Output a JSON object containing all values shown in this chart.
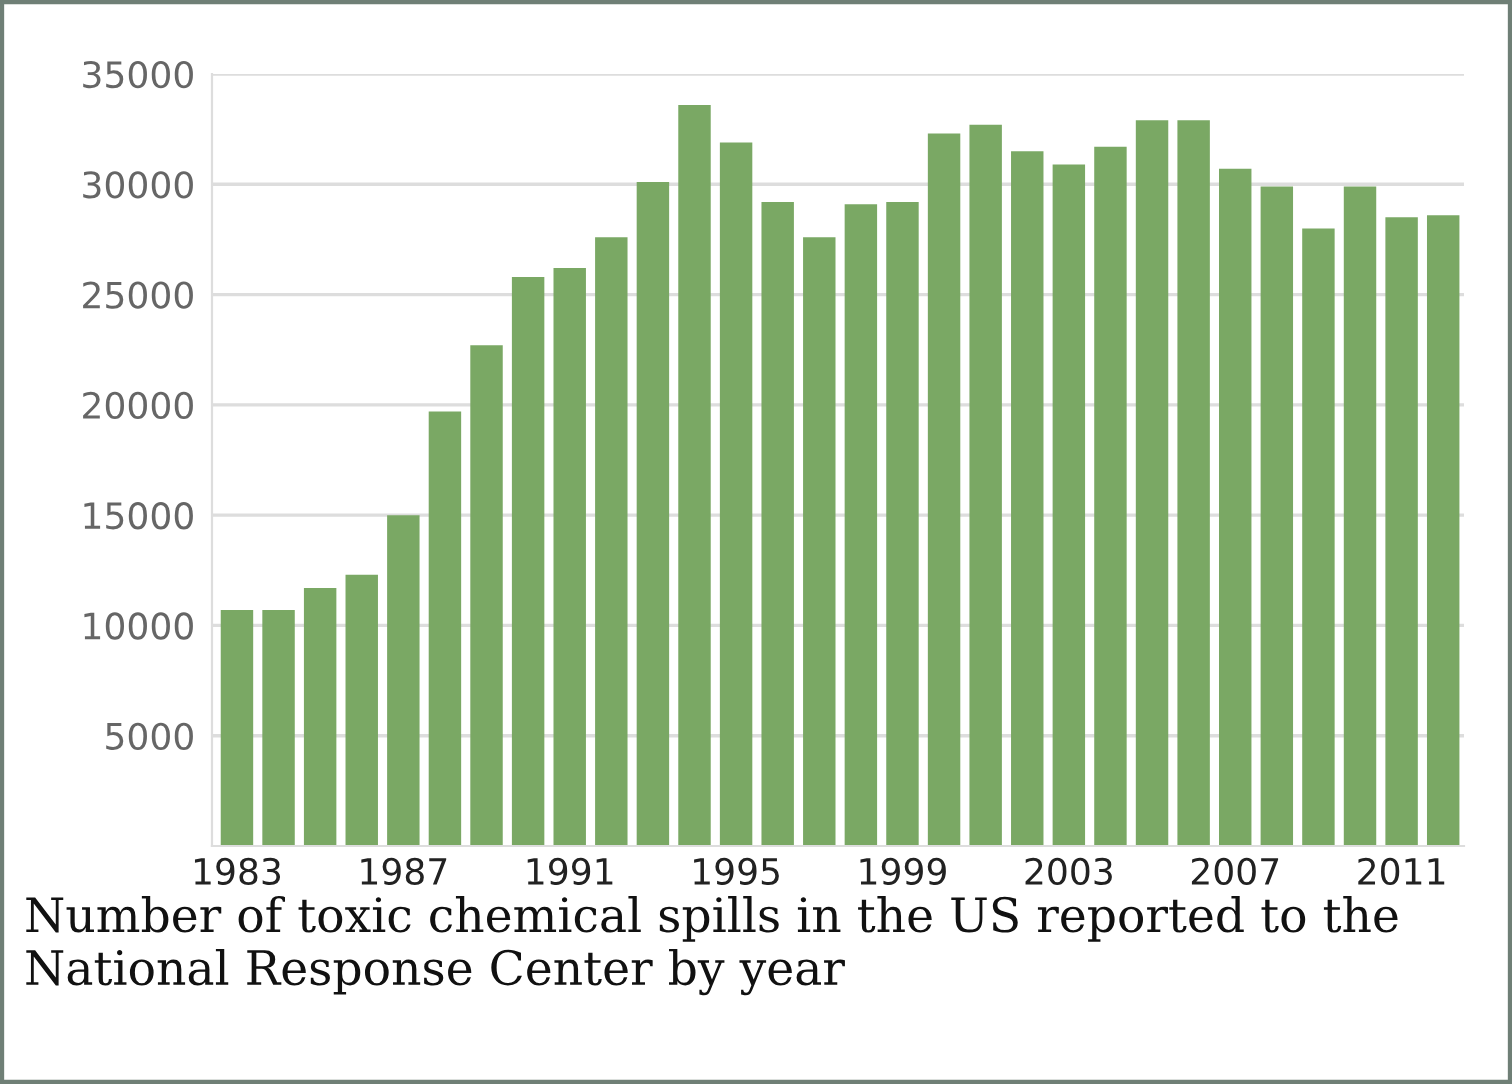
{
  "chart_data": {
    "type": "bar",
    "categories": [
      "1983",
      null,
      null,
      null,
      "1987",
      null,
      null,
      null,
      "1991",
      null,
      null,
      null,
      "1995",
      null,
      null,
      null,
      "1999",
      null,
      null,
      null,
      "2003",
      null,
      null,
      null,
      "2007",
      null,
      null,
      null,
      "2011",
      null
    ],
    "values": [
      10700,
      10700,
      11700,
      12300,
      15000,
      19700,
      22700,
      25800,
      26200,
      27600,
      30100,
      33600,
      31900,
      29200,
      27600,
      29100,
      29200,
      32300,
      32700,
      31500,
      30900,
      31700,
      32900,
      32900,
      30700,
      29900,
      28000,
      29900,
      28500,
      28600
    ],
    "color": "#7aa864",
    "ylim": [
      0,
      35000
    ],
    "yticks": [
      5000,
      10000,
      15000,
      20000,
      25000,
      30000,
      35000
    ],
    "grid": "y",
    "annotations": [
      "Number of toxic chemical spills in the US reported to the National Response Center by year"
    ]
  }
}
